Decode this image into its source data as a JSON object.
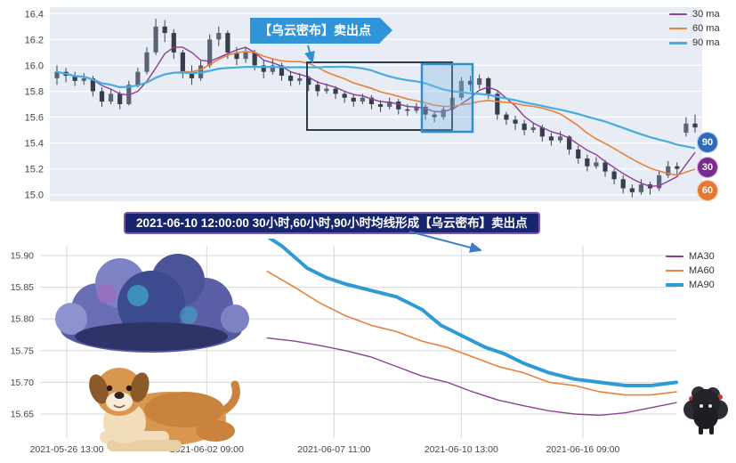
{
  "top_callout": {
    "text": "【乌云密布】卖出点"
  },
  "banner": {
    "text": "2021-06-10 12:00:00 30小时,60小时,90小时均线形成【乌云密布】卖出点"
  },
  "chart_data": [
    {
      "type": "candlestick",
      "title": "",
      "ylim": [
        14.95,
        16.45
      ],
      "y_ticks": [
        "16.4",
        "16.2",
        "16.0",
        "15.8",
        "15.6",
        "15.4",
        "15.2",
        "15.0"
      ],
      "plot_bg": "#e8ecf4",
      "grid_color": "#ffffff",
      "candle_up": "#5a6478",
      "candle_down": "#363d4c",
      "legend_position": "top-right",
      "legend": [
        {
          "label": "30 ma",
          "color": "#8c3f97",
          "width": 2
        },
        {
          "label": "60 ma",
          "color": "#e8813a",
          "width": 2
        },
        {
          "label": "90 ma",
          "color": "#45aede",
          "width": 3
        }
      ],
      "ma_lines": [
        {
          "name": "30ma",
          "color": "#8c3f97",
          "width": 1.4,
          "window": 5
        },
        {
          "name": "60ma",
          "color": "#e8813a",
          "width": 1.6,
          "window": 12
        },
        {
          "name": "90ma",
          "color": "#45aede",
          "width": 2.2,
          "window": 25
        }
      ],
      "badges": [
        {
          "label": "90",
          "color": "#2e6bbf"
        },
        {
          "label": "30",
          "color": "#7a2b8f"
        },
        {
          "label": "60",
          "color": "#e8762e"
        }
      ],
      "candles_ohlc": [
        [
          15.9,
          16.0,
          15.85,
          15.95
        ],
        [
          15.95,
          15.98,
          15.87,
          15.92
        ],
        [
          15.92,
          15.95,
          15.84,
          15.88
        ],
        [
          15.88,
          15.94,
          15.85,
          15.9
        ],
        [
          15.9,
          15.92,
          15.76,
          15.8
        ],
        [
          15.8,
          15.83,
          15.68,
          15.72
        ],
        [
          15.72,
          15.82,
          15.7,
          15.78
        ],
        [
          15.78,
          15.8,
          15.66,
          15.7
        ],
        [
          15.7,
          15.88,
          15.69,
          15.85
        ],
        [
          15.85,
          15.98,
          15.83,
          15.95
        ],
        [
          15.95,
          16.14,
          15.93,
          16.1
        ],
        [
          16.1,
          16.36,
          16.08,
          16.3
        ],
        [
          16.3,
          16.35,
          16.18,
          16.25
        ],
        [
          16.25,
          16.28,
          16.05,
          16.1
        ],
        [
          16.1,
          16.12,
          15.9,
          15.95
        ],
        [
          15.95,
          16.0,
          15.85,
          15.9
        ],
        [
          15.9,
          16.04,
          15.88,
          16.0
        ],
        [
          16.0,
          16.24,
          15.98,
          16.2
        ],
        [
          16.2,
          16.3,
          16.15,
          16.25
        ],
        [
          16.25,
          16.27,
          16.05,
          16.1
        ],
        [
          16.1,
          16.14,
          16.0,
          16.05
        ],
        [
          16.05,
          16.14,
          16.02,
          16.1
        ],
        [
          16.1,
          16.12,
          15.96,
          16.0
        ],
        [
          16.0,
          16.04,
          15.9,
          15.95
        ],
        [
          15.95,
          16.05,
          15.93,
          16.0
        ],
        [
          16.0,
          16.02,
          15.88,
          15.92
        ],
        [
          15.92,
          15.95,
          15.84,
          15.88
        ],
        [
          15.88,
          15.94,
          15.85,
          15.9
        ],
        [
          15.9,
          15.92,
          15.8,
          15.85
        ],
        [
          15.85,
          15.88,
          15.76,
          15.8
        ],
        [
          15.8,
          15.86,
          15.78,
          15.82
        ],
        [
          15.82,
          15.84,
          15.74,
          15.78
        ],
        [
          15.78,
          15.8,
          15.71,
          15.75
        ],
        [
          15.75,
          15.78,
          15.68,
          15.72
        ],
        [
          15.72,
          15.78,
          15.7,
          15.75
        ],
        [
          15.75,
          15.77,
          15.66,
          15.7
        ],
        [
          15.7,
          15.73,
          15.64,
          15.68
        ],
        [
          15.68,
          15.75,
          15.66,
          15.72
        ],
        [
          15.72,
          15.74,
          15.62,
          15.66
        ],
        [
          15.66,
          15.7,
          15.61,
          15.65
        ],
        [
          15.65,
          15.71,
          15.63,
          15.68
        ],
        [
          15.68,
          15.7,
          15.58,
          15.62
        ],
        [
          15.62,
          15.65,
          15.56,
          15.6
        ],
        [
          15.6,
          15.69,
          15.58,
          15.66
        ],
        [
          15.66,
          15.78,
          15.64,
          15.75
        ],
        [
          15.75,
          15.91,
          15.73,
          15.88
        ],
        [
          15.88,
          15.92,
          15.8,
          15.85
        ],
        [
          15.85,
          15.93,
          15.82,
          15.9
        ],
        [
          15.9,
          15.91,
          15.74,
          15.78
        ],
        [
          15.78,
          15.8,
          15.58,
          15.62
        ],
        [
          15.62,
          15.64,
          15.54,
          15.58
        ],
        [
          15.58,
          15.61,
          15.5,
          15.55
        ],
        [
          15.55,
          15.58,
          15.46,
          15.5
        ],
        [
          15.5,
          15.56,
          15.48,
          15.52
        ],
        [
          15.52,
          15.54,
          15.41,
          15.45
        ],
        [
          15.45,
          15.48,
          15.38,
          15.42
        ],
        [
          15.42,
          15.49,
          15.4,
          15.45
        ],
        [
          15.45,
          15.46,
          15.31,
          15.35
        ],
        [
          15.35,
          15.38,
          15.24,
          15.28
        ],
        [
          15.28,
          15.31,
          15.18,
          15.22
        ],
        [
          15.22,
          15.29,
          15.2,
          15.25
        ],
        [
          15.25,
          15.27,
          15.14,
          15.18
        ],
        [
          15.18,
          15.2,
          15.08,
          15.12
        ],
        [
          15.12,
          15.15,
          15.01,
          15.05
        ],
        [
          15.05,
          15.08,
          14.98,
          15.02
        ],
        [
          15.02,
          15.12,
          15.0,
          15.08
        ],
        [
          15.08,
          15.1,
          15.0,
          15.05
        ],
        [
          15.05,
          15.19,
          15.03,
          15.15
        ],
        [
          15.15,
          15.26,
          15.13,
          15.22
        ],
        [
          15.22,
          15.25,
          15.15,
          15.2
        ],
        [
          15.48,
          15.6,
          15.45,
          15.55
        ],
        [
          15.55,
          15.62,
          15.48,
          15.52
        ]
      ]
    },
    {
      "type": "line",
      "title": "",
      "ylim": [
        15.612,
        15.915
      ],
      "y_ticks": [
        "15.90",
        "15.85",
        "15.80",
        "15.75",
        "15.70",
        "15.65"
      ],
      "x_ticks": [
        {
          "label": "2021-05-26 13:00",
          "f": 0.042
        },
        {
          "label": "2021-06-02 09:00",
          "f": 0.262
        },
        {
          "label": "2021-06-07 11:00",
          "f": 0.462
        },
        {
          "label": "2021-06-10 13:00",
          "f": 0.662
        },
        {
          "label": "2021-06-16 09:00",
          "f": 0.853
        }
      ],
      "grid_color": "#d7d7d7",
      "legend_position": "top-right",
      "legend": [
        {
          "label": "MA30",
          "color": "#8c3f97",
          "width": 2
        },
        {
          "label": "MA60",
          "color": "#e8813a",
          "width": 2
        },
        {
          "label": "MA90",
          "color": "#2e9ad6",
          "width": 4
        }
      ],
      "series": [
        {
          "name": "MA30",
          "color": "#8c3f97",
          "width": 1.4,
          "points": [
            [
              0.357,
              15.77
            ],
            [
              0.4,
              15.765
            ],
            [
              0.44,
              15.758
            ],
            [
              0.48,
              15.75
            ],
            [
              0.52,
              15.74
            ],
            [
              0.56,
              15.725
            ],
            [
              0.6,
              15.71
            ],
            [
              0.64,
              15.7
            ],
            [
              0.68,
              15.685
            ],
            [
              0.72,
              15.672
            ],
            [
              0.76,
              15.663
            ],
            [
              0.8,
              15.655
            ],
            [
              0.84,
              15.65
            ],
            [
              0.88,
              15.648
            ],
            [
              0.92,
              15.652
            ],
            [
              0.96,
              15.66
            ],
            [
              1.0,
              15.668
            ]
          ]
        },
        {
          "name": "MA60",
          "color": "#e8813a",
          "width": 1.6,
          "points": [
            [
              0.357,
              15.875
            ],
            [
              0.4,
              15.85
            ],
            [
              0.44,
              15.825
            ],
            [
              0.48,
              15.805
            ],
            [
              0.52,
              15.79
            ],
            [
              0.56,
              15.78
            ],
            [
              0.6,
              15.765
            ],
            [
              0.64,
              15.755
            ],
            [
              0.68,
              15.74
            ],
            [
              0.72,
              15.725
            ],
            [
              0.76,
              15.715
            ],
            [
              0.8,
              15.7
            ],
            [
              0.84,
              15.695
            ],
            [
              0.88,
              15.685
            ],
            [
              0.92,
              15.68
            ],
            [
              0.96,
              15.68
            ],
            [
              1.0,
              15.685
            ]
          ]
        },
        {
          "name": "MA90",
          "color": "#2e9ad6",
          "width": 4,
          "points": [
            [
              0.357,
              15.93
            ],
            [
              0.38,
              15.915
            ],
            [
              0.42,
              15.88
            ],
            [
              0.45,
              15.865
            ],
            [
              0.48,
              15.855
            ],
            [
              0.52,
              15.845
            ],
            [
              0.56,
              15.835
            ],
            [
              0.6,
              15.815
            ],
            [
              0.63,
              15.79
            ],
            [
              0.66,
              15.775
            ],
            [
              0.7,
              15.755
            ],
            [
              0.73,
              15.745
            ],
            [
              0.76,
              15.73
            ],
            [
              0.8,
              15.715
            ],
            [
              0.84,
              15.705
            ],
            [
              0.88,
              15.7
            ],
            [
              0.92,
              15.695
            ],
            [
              0.96,
              15.695
            ],
            [
              1.0,
              15.7
            ]
          ]
        }
      ]
    }
  ]
}
